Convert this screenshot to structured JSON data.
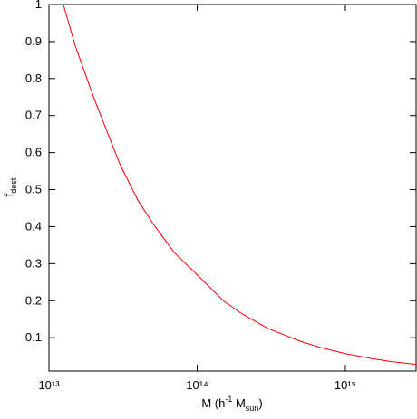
{
  "chart_data": {
    "type": "line",
    "xlabel": [
      "M (h",
      "-1",
      " M",
      "sun",
      ")"
    ],
    "ylabel": [
      "f",
      "dest"
    ],
    "xscale": "log",
    "xlim": [
      10000000000000.0,
      3000000000000000.0
    ],
    "ylim": [
      0.01,
      1
    ],
    "xticks": [
      {
        "value": 10000000000000.0,
        "label": "10¹³"
      },
      {
        "value": 100000000000000.0,
        "label": "10¹⁴"
      },
      {
        "value": 1000000000000000.0,
        "label": "10¹⁵"
      }
    ],
    "yticks": [
      0.1,
      0.2,
      0.3,
      0.4,
      0.5,
      0.6,
      0.7,
      0.8,
      0.9,
      1
    ],
    "grid": false,
    "x": [
      12500000000000.0,
      15000000000000.0,
      20000000000000.0,
      30000000000000.0,
      40000000000000.0,
      50000000000000.0,
      70000000000000.0,
      100000000000000.0,
      150000000000000.0,
      200000000000000.0,
      300000000000000.0,
      500000000000000.0,
      700000000000000.0,
      1000000000000000.0,
      1500000000000000.0,
      2000000000000000.0,
      3000000000000000.0
    ],
    "series": [
      {
        "color": "#ff0000",
        "values": [
          1.0,
          0.89,
          0.75,
          0.57,
          0.47,
          0.41,
          0.33,
          0.27,
          0.2,
          0.165,
          0.125,
          0.09,
          0.072,
          0.057,
          0.044,
          0.036,
          0.028
        ]
      }
    ]
  }
}
